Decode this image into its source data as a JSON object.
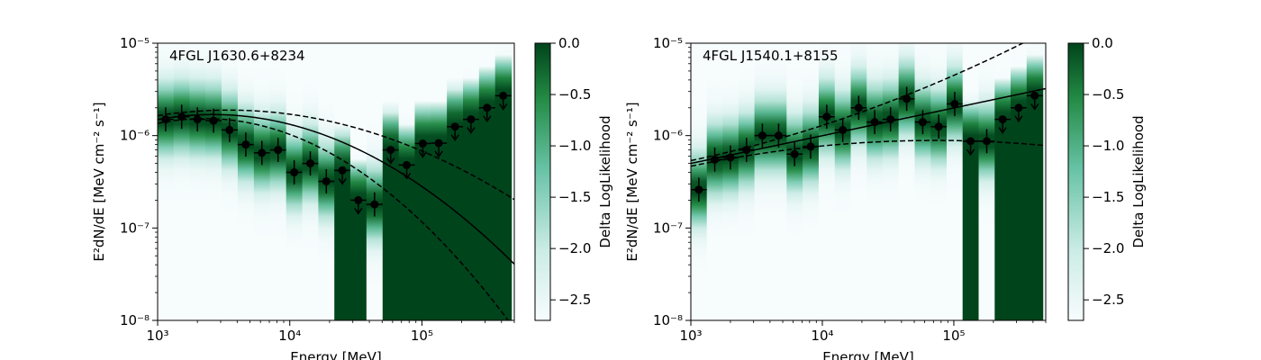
{
  "figure": {
    "xlabel_prefix": "Energy [MeV]",
    "ylabel": "E²dN/dE [MeV cm⁻² s⁻¹]",
    "colorbar_label": "Delta LogLikelihood",
    "colorbar_ticks": [
      "0.0",
      "−0.5",
      "−1.0",
      "−1.5",
      "−2.0",
      "−2.5"
    ],
    "colormap": [
      "#f7fcfd",
      "#ccece6",
      "#66c2a4",
      "#238b45",
      "#00441b"
    ]
  },
  "chart_data": [
    {
      "type": "scatter",
      "title": "4FGL J1630.6+8234",
      "xlabel": "Energy [MeV]",
      "ylabel": "E²dN/dE [MeV cm⁻² s⁻¹]",
      "xscale": "log",
      "yscale": "log",
      "xlim": [
        1000,
        500000
      ],
      "ylim": [
        1e-08,
        1e-05
      ],
      "xticks": [
        "10³",
        "10⁴",
        "10⁵"
      ],
      "yticks": [
        "10⁻⁸",
        "10⁻⁷",
        "10⁻⁶",
        "10⁻⁵"
      ],
      "colorbar_range": [
        -2.7,
        0.0
      ],
      "points": [
        {
          "x": 1150,
          "y": 1.5e-06,
          "ul": false
        },
        {
          "x": 1520,
          "y": 1.6e-06,
          "ul": false
        },
        {
          "x": 2000,
          "y": 1.5e-06,
          "ul": false
        },
        {
          "x": 2650,
          "y": 1.45e-06,
          "ul": false
        },
        {
          "x": 3500,
          "y": 1.15e-06,
          "ul": false
        },
        {
          "x": 4650,
          "y": 8e-07,
          "ul": false
        },
        {
          "x": 6150,
          "y": 6.5e-07,
          "ul": false
        },
        {
          "x": 8150,
          "y": 7e-07,
          "ul": false
        },
        {
          "x": 10800,
          "y": 4e-07,
          "ul": false
        },
        {
          "x": 14300,
          "y": 5e-07,
          "ul": false
        },
        {
          "x": 18900,
          "y": 3.2e-07,
          "ul": false
        },
        {
          "x": 25000,
          "y": 4.2e-07,
          "ul": true
        },
        {
          "x": 33000,
          "y": 2e-07,
          "ul": true
        },
        {
          "x": 43800,
          "y": 1.8e-07,
          "ul": false
        },
        {
          "x": 58000,
          "y": 7e-07,
          "ul": true
        },
        {
          "x": 76700,
          "y": 4.8e-07,
          "ul": true
        },
        {
          "x": 101500,
          "y": 8.2e-07,
          "ul": true
        },
        {
          "x": 134000,
          "y": 8.3e-07,
          "ul": true
        },
        {
          "x": 178000,
          "y": 1.25e-06,
          "ul": true
        },
        {
          "x": 235000,
          "y": 1.5e-06,
          "ul": true
        },
        {
          "x": 311000,
          "y": 2e-06,
          "ul": true
        },
        {
          "x": 412000,
          "y": 2.7e-06,
          "ul": true
        }
      ],
      "model": {
        "shape": "log-parabola",
        "E0": 1500,
        "norm": 1.62e-06,
        "alpha": 1.85,
        "beta": 0.135,
        "band_factor": 0.09
      }
    },
    {
      "type": "scatter",
      "title": "4FGL J1540.1+8155",
      "xlabel": "Energy [MeV]",
      "ylabel": "E²dN/dE [MeV cm⁻² s⁻¹]",
      "xscale": "log",
      "yscale": "log",
      "xlim": [
        1000,
        500000
      ],
      "ylim": [
        1e-08,
        1e-05
      ],
      "xticks": [
        "10³",
        "10⁴",
        "10⁵"
      ],
      "yticks": [
        "10⁻⁸",
        "10⁻⁷",
        "10⁻⁶",
        "10⁻⁵"
      ],
      "colorbar_range": [
        -2.7,
        0.0
      ],
      "points": [
        {
          "x": 1150,
          "y": 2.6e-07,
          "ul": false
        },
        {
          "x": 1520,
          "y": 5.5e-07,
          "ul": false
        },
        {
          "x": 2000,
          "y": 5.8e-07,
          "ul": false
        },
        {
          "x": 2650,
          "y": 7e-07,
          "ul": false
        },
        {
          "x": 3500,
          "y": 1e-06,
          "ul": false
        },
        {
          "x": 4650,
          "y": 1e-06,
          "ul": false
        },
        {
          "x": 6150,
          "y": 6.3e-07,
          "ul": false
        },
        {
          "x": 8150,
          "y": 7.6e-07,
          "ul": false
        },
        {
          "x": 10800,
          "y": 1.6e-06,
          "ul": false
        },
        {
          "x": 14300,
          "y": 1.15e-06,
          "ul": false
        },
        {
          "x": 18900,
          "y": 2e-06,
          "ul": false
        },
        {
          "x": 25000,
          "y": 1.4e-06,
          "ul": false
        },
        {
          "x": 33000,
          "y": 1.5e-06,
          "ul": false
        },
        {
          "x": 43800,
          "y": 2.5e-06,
          "ul": false
        },
        {
          "x": 58000,
          "y": 1.4e-06,
          "ul": false
        },
        {
          "x": 76700,
          "y": 1.25e-06,
          "ul": false
        },
        {
          "x": 101500,
          "y": 2.2e-06,
          "ul": false
        },
        {
          "x": 134000,
          "y": 8.7e-07,
          "ul": true
        },
        {
          "x": 178000,
          "y": 8.7e-07,
          "ul": false
        },
        {
          "x": 235000,
          "y": 1.5e-06,
          "ul": true
        },
        {
          "x": 311000,
          "y": 2e-06,
          "ul": true
        },
        {
          "x": 412000,
          "y": 2.7e-06,
          "ul": true
        }
      ],
      "model": {
        "shape": "power-law",
        "E0": 1000,
        "norm": 5e-07,
        "alpha": 1.7,
        "beta": 0.0,
        "band_factor": 0.07
      }
    }
  ]
}
